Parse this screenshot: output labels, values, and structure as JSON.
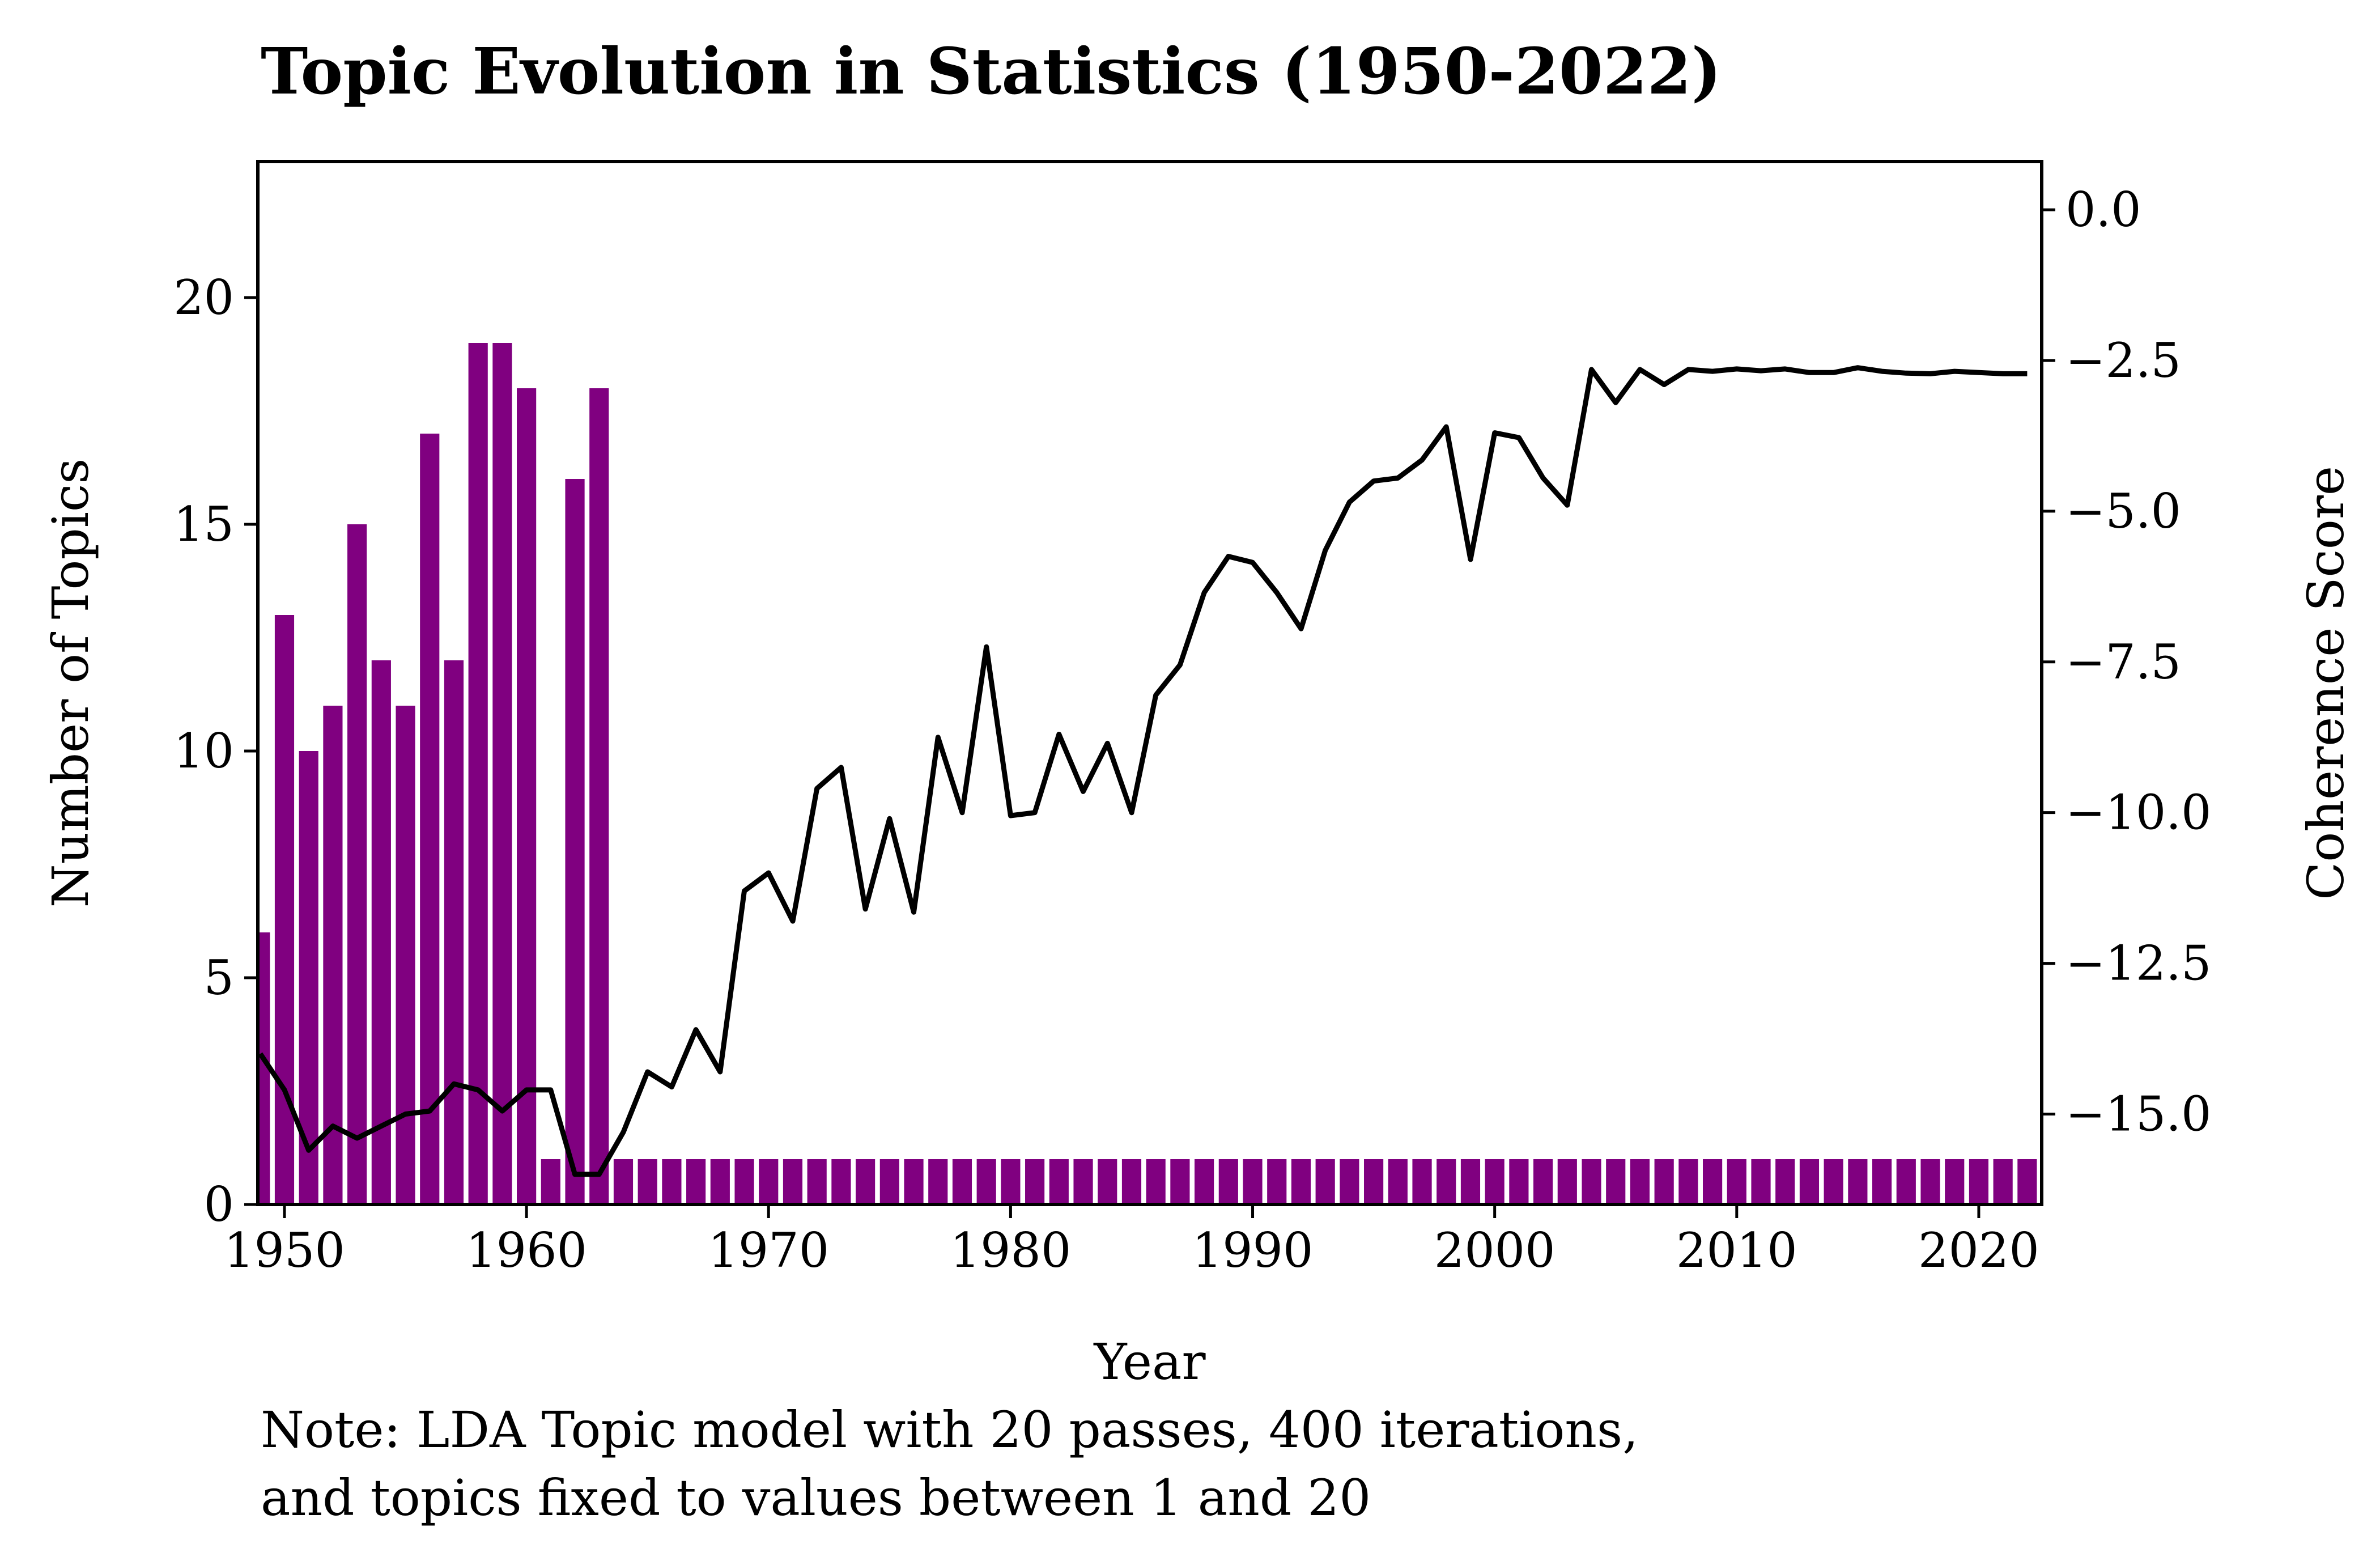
{
  "chart_data": {
    "type": "bar",
    "title": "Topic Evolution in Statistics (1950-2022)",
    "xlabel": "Year",
    "ylabel": "Number of Topics",
    "y2label": "Coherence Score",
    "note_lines": [
      "Note: LDA Topic model with 20 passes, 400 iterations,",
      "and topics fixed to values between 1 and 20"
    ],
    "xlim": [
      1948.9,
      2022.6
    ],
    "ylim": [
      0,
      23
    ],
    "y2lim": [
      -16.5,
      0.8
    ],
    "x_ticks": [
      1950,
      1960,
      1970,
      1980,
      1990,
      2000,
      2010,
      2020
    ],
    "y_ticks": [
      0,
      5,
      10,
      15,
      20
    ],
    "y2_ticks": [
      0.0,
      -2.5,
      -5.0,
      -7.5,
      -10.0,
      -12.5,
      -15.0
    ],
    "y2_tick_labels": [
      "0.0",
      "−2.5",
      "−5.0",
      "−7.5",
      "−10.0",
      "−12.5",
      "−15.0"
    ],
    "bar_color": "#800080",
    "line_color": "#000000",
    "grid": false,
    "years": [
      1949,
      1950,
      1951,
      1952,
      1953,
      1954,
      1955,
      1956,
      1957,
      1958,
      1959,
      1960,
      1961,
      1962,
      1963,
      1964,
      1965,
      1966,
      1967,
      1968,
      1969,
      1970,
      1971,
      1972,
      1973,
      1974,
      1975,
      1976,
      1977,
      1978,
      1979,
      1980,
      1981,
      1982,
      1983,
      1984,
      1985,
      1986,
      1987,
      1988,
      1989,
      1990,
      1991,
      1992,
      1993,
      1994,
      1995,
      1996,
      1997,
      1998,
      1999,
      2000,
      2001,
      2002,
      2003,
      2004,
      2005,
      2006,
      2007,
      2008,
      2009,
      2010,
      2011,
      2012,
      2013,
      2014,
      2015,
      2016,
      2017,
      2018,
      2019,
      2020,
      2021,
      2022
    ],
    "series": [
      {
        "name": "Number of Topics",
        "axis": "left",
        "type": "bar",
        "values": [
          6,
          13,
          10,
          11,
          15,
          12,
          11,
          17,
          12,
          19,
          19,
          18,
          1,
          16,
          18,
          1,
          1,
          1,
          1,
          1,
          1,
          1,
          1,
          1,
          1,
          1,
          1,
          1,
          1,
          1,
          1,
          1,
          1,
          1,
          1,
          1,
          1,
          1,
          1,
          1,
          1,
          1,
          1,
          1,
          1,
          1,
          1,
          1,
          1,
          1,
          1,
          1,
          1,
          1,
          1,
          1,
          1,
          1,
          1,
          1,
          1,
          1,
          1,
          1,
          1,
          1,
          1,
          1,
          1,
          1,
          1,
          1,
          1,
          1
        ]
      },
      {
        "name": "Coherence Score",
        "axis": "right",
        "type": "line",
        "values": [
          -14.0,
          -14.6,
          -15.6,
          -15.2,
          -15.4,
          -15.2,
          -15.0,
          -14.95,
          -14.5,
          -14.6,
          -14.95,
          -14.6,
          -14.6,
          -16.0,
          -16.0,
          -15.3,
          -14.3,
          -14.55,
          -13.6,
          -14.3,
          -11.3,
          -11.0,
          -11.8,
          -9.6,
          -9.25,
          -11.6,
          -10.1,
          -11.65,
          -8.75,
          -10.0,
          -7.25,
          -10.05,
          -10.0,
          -8.7,
          -9.65,
          -8.85,
          -10.0,
          -8.05,
          -7.55,
          -6.35,
          -5.75,
          -5.85,
          -6.35,
          -6.95,
          -5.65,
          -4.85,
          -4.5,
          -4.45,
          -4.15,
          -3.6,
          -5.8,
          -3.7,
          -3.78,
          -4.45,
          -4.9,
          -2.65,
          -3.2,
          -2.65,
          -2.9,
          -2.65,
          -2.68,
          -2.64,
          -2.67,
          -2.64,
          -2.7,
          -2.7,
          -2.62,
          -2.68,
          -2.71,
          -2.72,
          -2.68,
          -2.7,
          -2.72,
          -2.72
        ]
      }
    ]
  }
}
